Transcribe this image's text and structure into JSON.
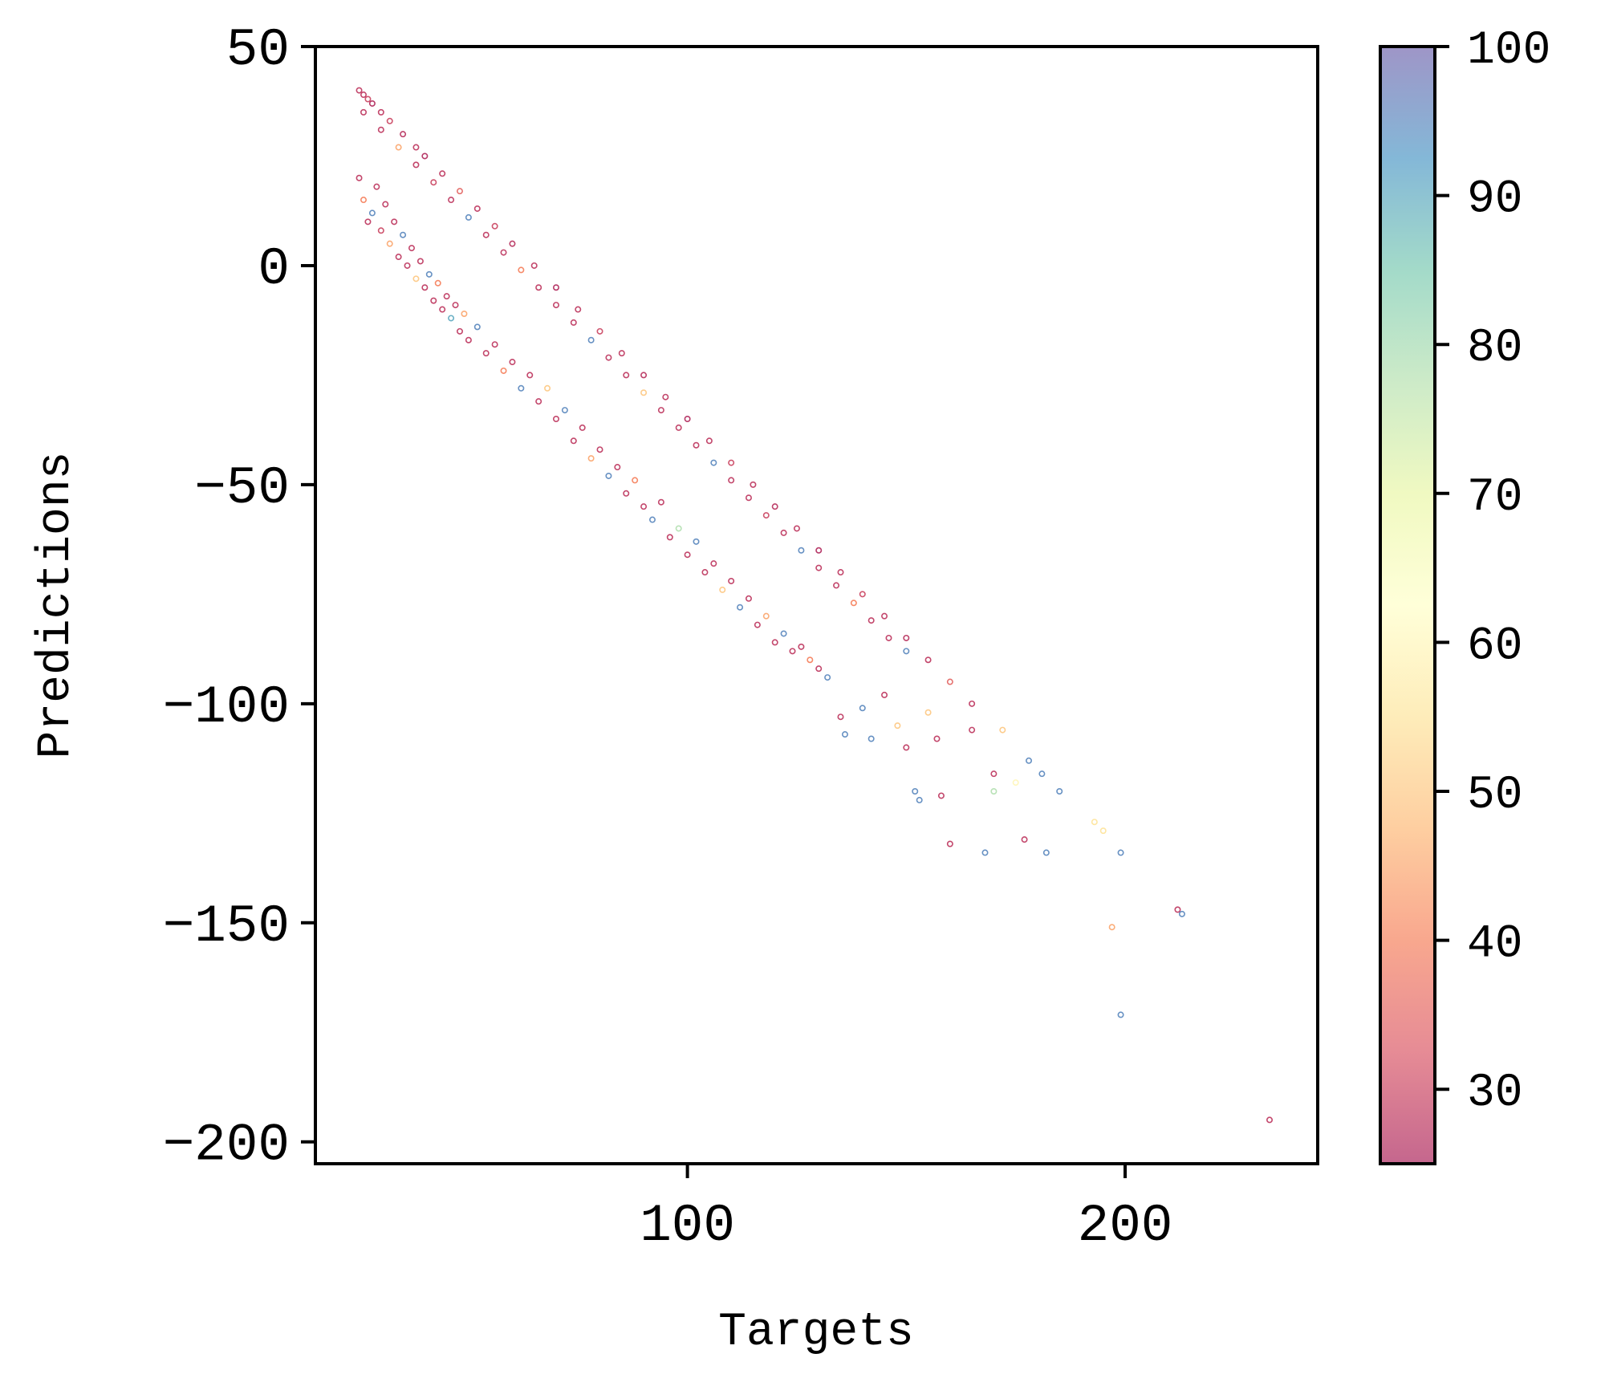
{
  "chart_data": {
    "type": "scatter",
    "title": "",
    "xlabel": "Targets",
    "ylabel": "Predictions",
    "xlim": [
      15,
      244
    ],
    "ylim": [
      -205,
      50
    ],
    "x_ticks": [
      100,
      200
    ],
    "x_tick_labels": [
      "100",
      "200"
    ],
    "y_ticks": [
      50,
      0,
      -50,
      -100,
      -150,
      -200
    ],
    "y_tick_labels": [
      "50",
      "0",
      "−50",
      "−100",
      "−150",
      "−200"
    ],
    "colorbar": {
      "range": [
        25,
        100
      ],
      "ticks": [
        30,
        40,
        50,
        60,
        70,
        80,
        90,
        100
      ],
      "tick_labels": [
        "30",
        "40",
        "50",
        "60",
        "70",
        "80",
        "90",
        "100"
      ],
      "colormap": "Spectral",
      "alpha": 0.6
    },
    "grid": false,
    "marker": "hollow-circle",
    "points": [
      {
        "x": 25,
        "y": 40,
        "c": 28
      },
      {
        "x": 26,
        "y": 39,
        "c": 28
      },
      {
        "x": 27,
        "y": 38,
        "c": 30
      },
      {
        "x": 28,
        "y": 37,
        "c": 26
      },
      {
        "x": 30,
        "y": 35,
        "c": 28
      },
      {
        "x": 32,
        "y": 33,
        "c": 30
      },
      {
        "x": 35,
        "y": 30,
        "c": 27
      },
      {
        "x": 38,
        "y": 27,
        "c": 28
      },
      {
        "x": 40,
        "y": 25,
        "c": 26
      },
      {
        "x": 44,
        "y": 21,
        "c": 28
      },
      {
        "x": 48,
        "y": 17,
        "c": 35
      },
      {
        "x": 52,
        "y": 13,
        "c": 28
      },
      {
        "x": 56,
        "y": 9,
        "c": 30
      },
      {
        "x": 60,
        "y": 5,
        "c": 27
      },
      {
        "x": 65,
        "y": 0,
        "c": 28
      },
      {
        "x": 70,
        "y": -5,
        "c": 26
      },
      {
        "x": 75,
        "y": -10,
        "c": 28
      },
      {
        "x": 80,
        "y": -15,
        "c": 30
      },
      {
        "x": 85,
        "y": -20,
        "c": 28
      },
      {
        "x": 90,
        "y": -25,
        "c": 27
      },
      {
        "x": 95,
        "y": -30,
        "c": 28
      },
      {
        "x": 100,
        "y": -35,
        "c": 26
      },
      {
        "x": 105,
        "y": -40,
        "c": 28
      },
      {
        "x": 110,
        "y": -45,
        "c": 30
      },
      {
        "x": 115,
        "y": -50,
        "c": 28
      },
      {
        "x": 120,
        "y": -55,
        "c": 27
      },
      {
        "x": 125,
        "y": -60,
        "c": 28
      },
      {
        "x": 130,
        "y": -65,
        "c": 26
      },
      {
        "x": 135,
        "y": -70,
        "c": 28
      },
      {
        "x": 140,
        "y": -75,
        "c": 30
      },
      {
        "x": 145,
        "y": -80,
        "c": 28
      },
      {
        "x": 150,
        "y": -85,
        "c": 27
      },
      {
        "x": 155,
        "y": -90,
        "c": 28
      },
      {
        "x": 160,
        "y": -95,
        "c": 35
      },
      {
        "x": 165,
        "y": -100,
        "c": 28
      },
      {
        "x": 26,
        "y": 35,
        "c": 28
      },
      {
        "x": 30,
        "y": 31,
        "c": 28
      },
      {
        "x": 34,
        "y": 27,
        "c": 45
      },
      {
        "x": 38,
        "y": 23,
        "c": 28
      },
      {
        "x": 42,
        "y": 19,
        "c": 30
      },
      {
        "x": 46,
        "y": 15,
        "c": 28
      },
      {
        "x": 50,
        "y": 11,
        "c": 95
      },
      {
        "x": 54,
        "y": 7,
        "c": 28
      },
      {
        "x": 58,
        "y": 3,
        "c": 28
      },
      {
        "x": 62,
        "y": -1,
        "c": 40
      },
      {
        "x": 66,
        "y": -5,
        "c": 28
      },
      {
        "x": 70,
        "y": -9,
        "c": 28
      },
      {
        "x": 74,
        "y": -13,
        "c": 28
      },
      {
        "x": 78,
        "y": -17,
        "c": 95
      },
      {
        "x": 82,
        "y": -21,
        "c": 28
      },
      {
        "x": 86,
        "y": -25,
        "c": 28
      },
      {
        "x": 90,
        "y": -29,
        "c": 50
      },
      {
        "x": 94,
        "y": -33,
        "c": 28
      },
      {
        "x": 98,
        "y": -37,
        "c": 28
      },
      {
        "x": 102,
        "y": -41,
        "c": 28
      },
      {
        "x": 106,
        "y": -45,
        "c": 95
      },
      {
        "x": 110,
        "y": -49,
        "c": 28
      },
      {
        "x": 114,
        "y": -53,
        "c": 28
      },
      {
        "x": 118,
        "y": -57,
        "c": 30
      },
      {
        "x": 122,
        "y": -61,
        "c": 28
      },
      {
        "x": 126,
        "y": -65,
        "c": 95
      },
      {
        "x": 130,
        "y": -69,
        "c": 28
      },
      {
        "x": 134,
        "y": -73,
        "c": 28
      },
      {
        "x": 138,
        "y": -77,
        "c": 40
      },
      {
        "x": 142,
        "y": -81,
        "c": 28
      },
      {
        "x": 146,
        "y": -85,
        "c": 28
      },
      {
        "x": 150,
        "y": -88,
        "c": 95
      },
      {
        "x": 25,
        "y": 20,
        "c": 28
      },
      {
        "x": 26,
        "y": 15,
        "c": 40
      },
      {
        "x": 27,
        "y": 10,
        "c": 28
      },
      {
        "x": 28,
        "y": 12,
        "c": 95
      },
      {
        "x": 29,
        "y": 18,
        "c": 28
      },
      {
        "x": 30,
        "y": 8,
        "c": 30
      },
      {
        "x": 31,
        "y": 14,
        "c": 28
      },
      {
        "x": 32,
        "y": 5,
        "c": 45
      },
      {
        "x": 33,
        "y": 10,
        "c": 28
      },
      {
        "x": 34,
        "y": 2,
        "c": 28
      },
      {
        "x": 35,
        "y": 7,
        "c": 95
      },
      {
        "x": 36,
        "y": 0,
        "c": 28
      },
      {
        "x": 37,
        "y": 4,
        "c": 28
      },
      {
        "x": 38,
        "y": -3,
        "c": 50
      },
      {
        "x": 39,
        "y": 1,
        "c": 28
      },
      {
        "x": 40,
        "y": -5,
        "c": 28
      },
      {
        "x": 41,
        "y": -2,
        "c": 95
      },
      {
        "x": 42,
        "y": -8,
        "c": 28
      },
      {
        "x": 43,
        "y": -4,
        "c": 40
      },
      {
        "x": 44,
        "y": -10,
        "c": 28
      },
      {
        "x": 45,
        "y": -7,
        "c": 28
      },
      {
        "x": 46,
        "y": -12,
        "c": 90
      },
      {
        "x": 47,
        "y": -9,
        "c": 28
      },
      {
        "x": 48,
        "y": -15,
        "c": 28
      },
      {
        "x": 49,
        "y": -11,
        "c": 45
      },
      {
        "x": 50,
        "y": -17,
        "c": 28
      },
      {
        "x": 52,
        "y": -14,
        "c": 95
      },
      {
        "x": 54,
        "y": -20,
        "c": 28
      },
      {
        "x": 56,
        "y": -18,
        "c": 28
      },
      {
        "x": 58,
        "y": -24,
        "c": 40
      },
      {
        "x": 60,
        "y": -22,
        "c": 28
      },
      {
        "x": 62,
        "y": -28,
        "c": 95
      },
      {
        "x": 64,
        "y": -25,
        "c": 28
      },
      {
        "x": 66,
        "y": -31,
        "c": 28
      },
      {
        "x": 68,
        "y": -28,
        "c": 50
      },
      {
        "x": 70,
        "y": -35,
        "c": 28
      },
      {
        "x": 72,
        "y": -33,
        "c": 95
      },
      {
        "x": 74,
        "y": -40,
        "c": 28
      },
      {
        "x": 76,
        "y": -37,
        "c": 28
      },
      {
        "x": 78,
        "y": -44,
        "c": 45
      },
      {
        "x": 80,
        "y": -42,
        "c": 28
      },
      {
        "x": 82,
        "y": -48,
        "c": 95
      },
      {
        "x": 84,
        "y": -46,
        "c": 28
      },
      {
        "x": 86,
        "y": -52,
        "c": 28
      },
      {
        "x": 88,
        "y": -49,
        "c": 40
      },
      {
        "x": 90,
        "y": -55,
        "c": 28
      },
      {
        "x": 92,
        "y": -58,
        "c": 95
      },
      {
        "x": 94,
        "y": -54,
        "c": 28
      },
      {
        "x": 96,
        "y": -62,
        "c": 28
      },
      {
        "x": 98,
        "y": -60,
        "c": 78
      },
      {
        "x": 100,
        "y": -66,
        "c": 28
      },
      {
        "x": 102,
        "y": -63,
        "c": 95
      },
      {
        "x": 104,
        "y": -70,
        "c": 28
      },
      {
        "x": 106,
        "y": -68,
        "c": 28
      },
      {
        "x": 108,
        "y": -74,
        "c": 50
      },
      {
        "x": 110,
        "y": -72,
        "c": 28
      },
      {
        "x": 112,
        "y": -78,
        "c": 95
      },
      {
        "x": 114,
        "y": -76,
        "c": 28
      },
      {
        "x": 116,
        "y": -82,
        "c": 28
      },
      {
        "x": 118,
        "y": -80,
        "c": 45
      },
      {
        "x": 120,
        "y": -86,
        "c": 28
      },
      {
        "x": 122,
        "y": -84,
        "c": 95
      },
      {
        "x": 124,
        "y": -88,
        "c": 28
      },
      {
        "x": 126,
        "y": -87,
        "c": 28
      },
      {
        "x": 128,
        "y": -90,
        "c": 40
      },
      {
        "x": 130,
        "y": -92,
        "c": 28
      },
      {
        "x": 132,
        "y": -94,
        "c": 95
      },
      {
        "x": 135,
        "y": -103,
        "c": 28
      },
      {
        "x": 136,
        "y": -107,
        "c": 95
      },
      {
        "x": 140,
        "y": -101,
        "c": 95
      },
      {
        "x": 142,
        "y": -108,
        "c": 95
      },
      {
        "x": 145,
        "y": -98,
        "c": 28
      },
      {
        "x": 148,
        "y": -105,
        "c": 50
      },
      {
        "x": 150,
        "y": -110,
        "c": 28
      },
      {
        "x": 152,
        "y": -120,
        "c": 95
      },
      {
        "x": 153,
        "y": -122,
        "c": 95
      },
      {
        "x": 155,
        "y": -102,
        "c": 50
      },
      {
        "x": 157,
        "y": -108,
        "c": 28
      },
      {
        "x": 158,
        "y": -121,
        "c": 28
      },
      {
        "x": 160,
        "y": -132,
        "c": 28
      },
      {
        "x": 165,
        "y": -106,
        "c": 28
      },
      {
        "x": 168,
        "y": -134,
        "c": 95
      },
      {
        "x": 170,
        "y": -116,
        "c": 28
      },
      {
        "x": 170,
        "y": -120,
        "c": 78
      },
      {
        "x": 172,
        "y": -106,
        "c": 50
      },
      {
        "x": 175,
        "y": -118,
        "c": 60
      },
      {
        "x": 177,
        "y": -131,
        "c": 28
      },
      {
        "x": 178,
        "y": -113,
        "c": 95
      },
      {
        "x": 181,
        "y": -116,
        "c": 95
      },
      {
        "x": 182,
        "y": -134,
        "c": 95
      },
      {
        "x": 185,
        "y": -120,
        "c": 95
      },
      {
        "x": 193,
        "y": -127,
        "c": 55
      },
      {
        "x": 195,
        "y": -129,
        "c": 55
      },
      {
        "x": 197,
        "y": -151,
        "c": 45
      },
      {
        "x": 199,
        "y": -134,
        "c": 95
      },
      {
        "x": 199,
        "y": -171,
        "c": 95
      },
      {
        "x": 212,
        "y": -147,
        "c": 28
      },
      {
        "x": 213,
        "y": -148,
        "c": 95
      },
      {
        "x": 233,
        "y": -195,
        "c": 28
      }
    ]
  }
}
